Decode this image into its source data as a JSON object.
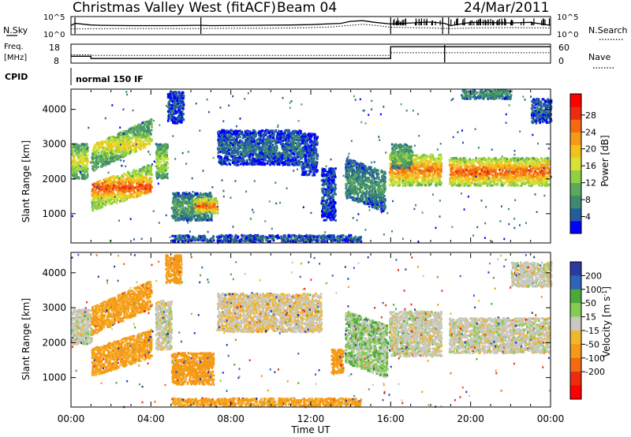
{
  "header": {
    "station": "Christmas Valley West (fitACF)",
    "beam": "Beam 04",
    "date": "24/Mar/2011"
  },
  "panel_labels": {
    "nsky": "N.Sky",
    "nsearch": "N.Search",
    "freq": "Freq.",
    "freq_unit": "[MHz]",
    "nave": "Nave",
    "cpid": "CPID",
    "cpid_value": "normal 150 IF",
    "noise_ticks_left": [
      "10^5",
      "10^0"
    ],
    "noise_ticks_right": [
      "10^5",
      "10^0"
    ],
    "freq_ticks": [
      "18",
      "8"
    ],
    "nave_ticks": [
      "60",
      "0"
    ]
  },
  "colors": {
    "power": [
      "#0000ff",
      "#235e9c",
      "#3d8a6f",
      "#5ca85e",
      "#8fd143",
      "#d6e235",
      "#f5c21b",
      "#f59a16",
      "#f26a12",
      "#ec2b0f",
      "#ff0000"
    ],
    "velocity": [
      "#2b3aa0",
      "#2e64b8",
      "#4ca83a",
      "#84cc52",
      "#c8c8c0",
      "#f2b62e",
      "#f59a16",
      "#f26a12",
      "#ec2b0f",
      "#ff0000"
    ],
    "scatter_gray": "#c9c9c2"
  },
  "chart_data": [
    {
      "type": "line",
      "title": "N.Sky / N.Search",
      "xlabel": "",
      "ylabel": "N.Sky",
      "x_range": [
        0,
        24
      ],
      "ylim_log10": [
        0,
        5
      ],
      "series": [
        {
          "name": "N.Sky",
          "style": "solid",
          "x": [
            0,
            0.2,
            1,
            1.5,
            3,
            5,
            6.5,
            7,
            9,
            11,
            12,
            13.5,
            14,
            14.6,
            15.2,
            16,
            17,
            18,
            18.7,
            19,
            20,
            21,
            22,
            23,
            24
          ],
          "log10": [
            2.5,
            3.2,
            2.7,
            2.6,
            2.5,
            2.5,
            2.6,
            2.5,
            2.6,
            2.7,
            2.8,
            3.2,
            3.8,
            4.0,
            3.5,
            3.0,
            3.3,
            3.6,
            3.2,
            2.5,
            3.5,
            3.4,
            3.3,
            3.5,
            2.6
          ]
        },
        {
          "name": "N.Search",
          "style": "dotted",
          "x": [
            0,
            2,
            4,
            6,
            8,
            10,
            12,
            13,
            14,
            14.6,
            15.5,
            16,
            18,
            19,
            20,
            22,
            24
          ],
          "log10": [
            1.5,
            1.6,
            1.6,
            1.6,
            1.7,
            1.7,
            1.9,
            2.1,
            2.6,
            2.9,
            2.4,
            2.0,
            1.8,
            1.6,
            1.8,
            1.9,
            1.8
          ]
        }
      ]
    },
    {
      "type": "line",
      "title": "Freq. / Nave",
      "xlabel": "",
      "ylabel": "Freq. [MHz]",
      "x_range": [
        0,
        24
      ],
      "ylim": [
        8,
        18
      ],
      "y2label": "Nave",
      "y2lim": [
        0,
        60
      ],
      "series": [
        {
          "name": "Freq.",
          "style": "solid",
          "x": [
            0,
            1,
            1,
            16,
            16,
            18.7,
            18.7,
            24
          ],
          "values": [
            11.5,
            11.5,
            10.2,
            10.2,
            17.0,
            17.0,
            17.0,
            17.0
          ]
        },
        {
          "name": "Nave",
          "style": "dotted",
          "x": [
            0,
            1,
            1,
            16,
            16,
            24
          ],
          "values": [
            26,
            26,
            24,
            24,
            33,
            33
          ]
        }
      ]
    },
    {
      "type": "heatmap",
      "title": "Power [dB]",
      "xlabel": "",
      "ylabel": "Slant Range [km]",
      "x_range_hours": [
        0,
        24
      ],
      "ylim": [
        180,
        4560
      ],
      "y_ticks": [
        1000,
        2000,
        3000,
        4000
      ],
      "colorbar_label": "Power [dB]",
      "colorbar_ticks": [
        4,
        8,
        12,
        16,
        20,
        24,
        28
      ],
      "colorbar_range": [
        0,
        33
      ],
      "grid": false,
      "regions": [
        {
          "t": [
            0,
            0.8
          ],
          "r": [
            2000,
            3000
          ],
          "v": 15
        },
        {
          "t": [
            1,
            4
          ],
          "r": [
            1350,
            2150
          ],
          "v": 24,
          "slope": 180
        },
        {
          "t": [
            1,
            4
          ],
          "r": [
            2600,
            3350
          ],
          "v": 17,
          "slope": 260
        },
        {
          "t": [
            4.2,
            4.8
          ],
          "r": [
            2000,
            3000
          ],
          "v": 14
        },
        {
          "t": [
            4.8,
            5.6
          ],
          "r": [
            3600,
            4500
          ],
          "v": 4
        },
        {
          "t": [
            5,
            7
          ],
          "r": [
            800,
            1600
          ],
          "v": 9
        },
        {
          "t": [
            6.1,
            7.3
          ],
          "r": [
            1000,
            1450
          ],
          "v": 23
        },
        {
          "t": [
            7.3,
            11.5
          ],
          "r": [
            2400,
            3400
          ],
          "v": 5
        },
        {
          "t": [
            11.5,
            12.3
          ],
          "r": [
            2100,
            3300
          ],
          "v": 4
        },
        {
          "t": [
            12.5,
            13.2
          ],
          "r": [
            800,
            2300
          ],
          "v": 4
        },
        {
          "t": [
            13.7,
            15.7
          ],
          "r": [
            1250,
            2400
          ],
          "v": 8,
          "slope": -200
        },
        {
          "t": [
            15.9,
            18.5
          ],
          "r": [
            1800,
            2700
          ],
          "v": 22
        },
        {
          "t": [
            16,
            17
          ],
          "r": [
            2300,
            3000
          ],
          "v": 11
        },
        {
          "t": [
            18.9,
            23.9
          ],
          "r": [
            1800,
            2600
          ],
          "v": 23
        },
        {
          "t": [
            19.5,
            22
          ],
          "r": [
            4300,
            4600
          ],
          "v": 8
        },
        {
          "t": [
            23,
            24
          ],
          "r": [
            3600,
            4300
          ],
          "v": 5
        },
        {
          "t": [
            5,
            14.5
          ],
          "r": [
            190,
            380
          ],
          "v": 5
        }
      ]
    },
    {
      "type": "heatmap",
      "title": "Velocity [m s^-1]",
      "xlabel": "Time UT",
      "ylabel": "Slant Range [km]",
      "x_range_hours": [
        0,
        24
      ],
      "x_ticks": [
        "00:00",
        "04:00",
        "08:00",
        "12:00",
        "16:00",
        "20:00",
        "00:00"
      ],
      "ylim": [
        180,
        4560
      ],
      "y_ticks": [
        1000,
        2000,
        3000,
        4000
      ],
      "colorbar_label": "Velocity [m s^-1]",
      "colorbar_ticks": [
        200,
        100,
        50,
        15,
        -15,
        -50,
        -100,
        -200
      ],
      "grid": false,
      "regions": [
        {
          "t": [
            0,
            1
          ],
          "r": [
            1950,
            2950
          ],
          "v": 0
        },
        {
          "t": [
            1,
            4
          ],
          "r": [
            1300,
            2100
          ],
          "v": -60,
          "slope": 180
        },
        {
          "t": [
            1,
            4
          ],
          "r": [
            2600,
            3400
          ],
          "v": -60,
          "slope": 260
        },
        {
          "t": [
            4.2,
            5
          ],
          "r": [
            1800,
            3200
          ],
          "v": 0
        },
        {
          "t": [
            4.7,
            5.5
          ],
          "r": [
            3700,
            4500
          ],
          "v": -70
        },
        {
          "t": [
            5,
            7.1
          ],
          "r": [
            800,
            1700
          ],
          "v": -70
        },
        {
          "t": [
            7.3,
            12.5
          ],
          "r": [
            2300,
            3400
          ],
          "v": -10
        },
        {
          "t": [
            13,
            13.6
          ],
          "r": [
            1100,
            1800
          ],
          "v": -70
        },
        {
          "t": [
            13.7,
            15.8
          ],
          "r": [
            1200,
            2700
          ],
          "v": 20,
          "slope": -200
        },
        {
          "t": [
            15.9,
            18.5
          ],
          "r": [
            1600,
            2900
          ],
          "v": 0
        },
        {
          "t": [
            18.9,
            23.9
          ],
          "r": [
            1700,
            2700
          ],
          "v": 0
        },
        {
          "t": [
            22,
            24
          ],
          "r": [
            3600,
            4300
          ],
          "v": 0
        },
        {
          "t": [
            5,
            14.5
          ],
          "r": [
            190,
            400
          ],
          "v": -60
        }
      ]
    }
  ]
}
